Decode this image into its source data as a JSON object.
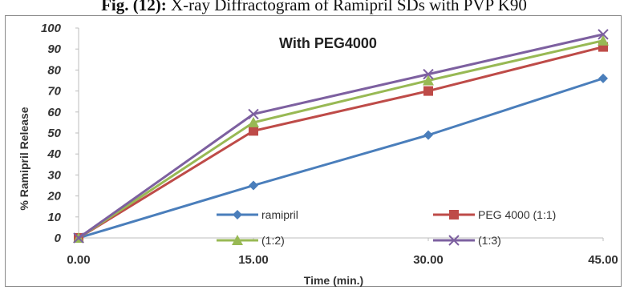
{
  "caption": {
    "prefix": "Fig.",
    "number": "(12):",
    "text": "X-ray Diffractogram of Ramipril SDs with PVP K90"
  },
  "chart_data": {
    "type": "line",
    "title": "With PEG4000",
    "xlabel": "Time (min.)",
    "ylabel": "% Ramipril Release",
    "x": [
      0,
      15,
      30,
      45
    ],
    "x_tick_labels": [
      "0.00",
      "15.00",
      "30.00",
      "45.00"
    ],
    "ylim": [
      0,
      100
    ],
    "y_ticks": [
      0,
      10,
      20,
      30,
      40,
      50,
      60,
      70,
      80,
      90,
      100
    ],
    "grid": false,
    "legend_position": "bottom-inside",
    "series": [
      {
        "name": "ramipril",
        "values": [
          0,
          25,
          49,
          76
        ],
        "color": "#4a7ebb",
        "marker": "diamond"
      },
      {
        "name": "PEG 4000 (1:1)",
        "values": [
          0,
          51,
          70,
          91
        ],
        "color": "#be4b48",
        "marker": "square"
      },
      {
        "name": "(1:2)",
        "values": [
          0,
          55,
          75,
          94
        ],
        "color": "#98b954",
        "marker": "triangle"
      },
      {
        "name": "(1:3)",
        "values": [
          0,
          59,
          78,
          97
        ],
        "color": "#7d60a0",
        "marker": "x"
      }
    ]
  }
}
